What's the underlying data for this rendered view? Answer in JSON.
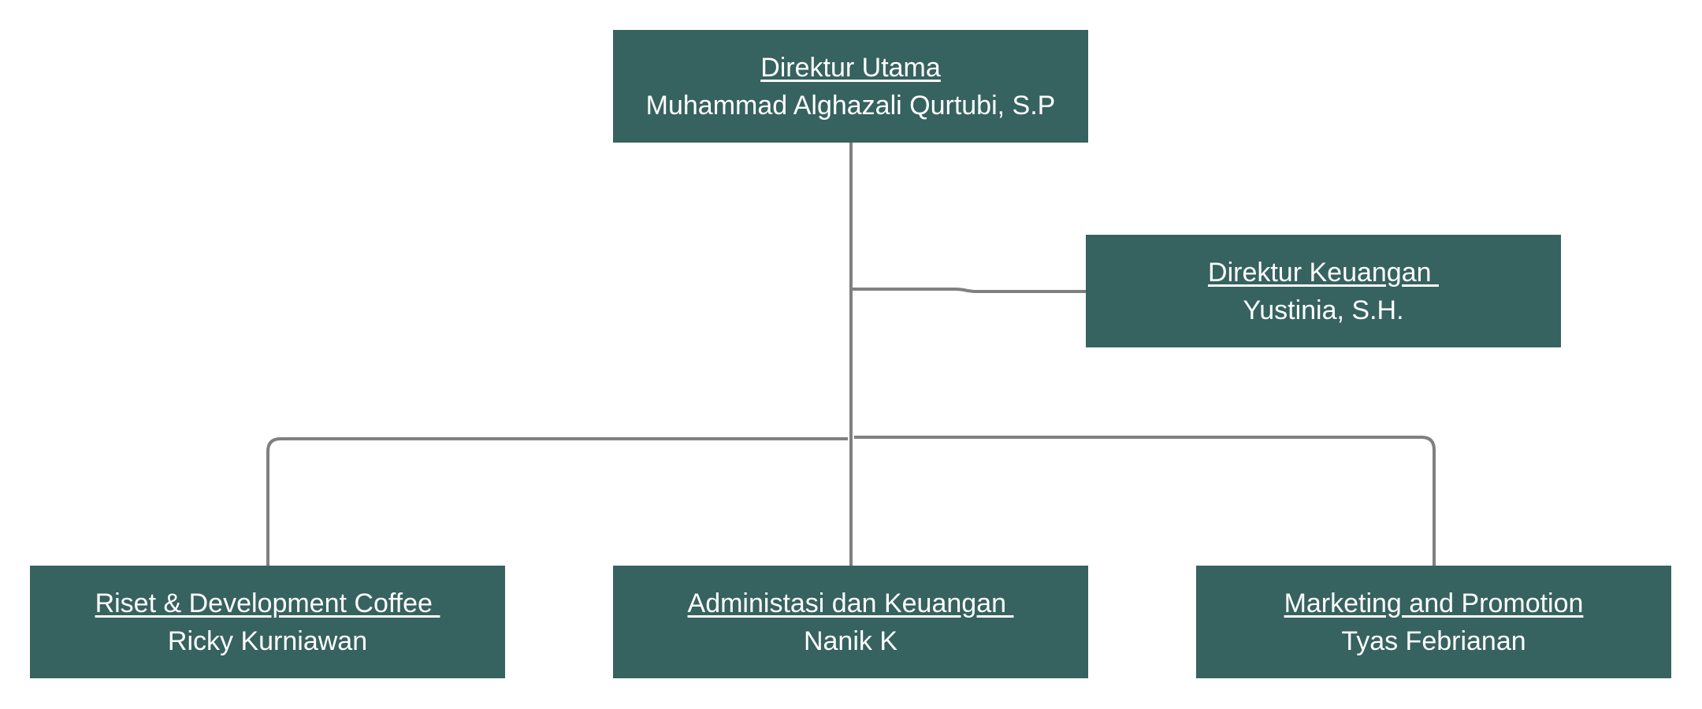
{
  "colors": {
    "node_fill": "#366260",
    "node_text": "#ffffff",
    "connector": "#808080",
    "background": "#ffffff"
  },
  "nodes": {
    "ceo": {
      "role": "Direktur Utama",
      "person": "Muhammad Alghazali Qurtubi, S.P"
    },
    "cfo": {
      "role": "Direktur Keuangan ",
      "person": "Yustinia, S.H."
    },
    "rnd": {
      "role": "Riset & Development Coffee ",
      "person": "Ricky Kurniawan"
    },
    "admin": {
      "role": "Administasi dan Keuangan ",
      "person": "Nanik K"
    },
    "marketing": {
      "role": "Marketing and Promotion",
      "person": "Tyas Febrianan"
    }
  },
  "edges": [
    {
      "from": "ceo",
      "to": "cfo"
    },
    {
      "from": "ceo",
      "to": "rnd"
    },
    {
      "from": "ceo",
      "to": "admin"
    },
    {
      "from": "ceo",
      "to": "marketing"
    }
  ]
}
